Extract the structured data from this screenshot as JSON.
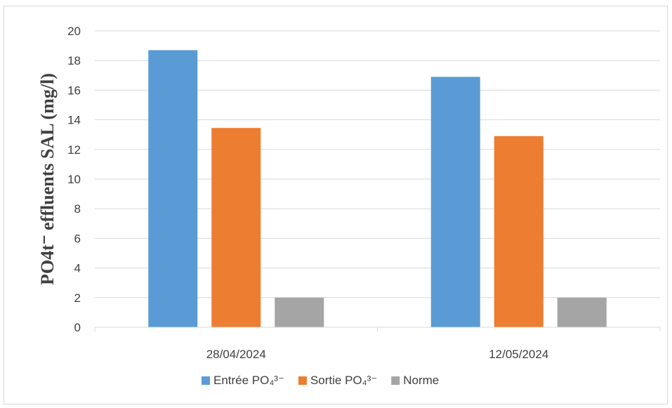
{
  "chart_data": {
    "type": "bar",
    "categories": [
      "28/04/2024",
      "12/05/2024"
    ],
    "series": [
      {
        "name": "Entrée PO₄³⁻",
        "values": [
          18.7,
          16.9
        ],
        "color": "#5b9bd5"
      },
      {
        "name": "Sortie PO₄³⁻",
        "values": [
          13.45,
          12.9
        ],
        "color": "#ed7d31"
      },
      {
        "name": "Norme",
        "values": [
          2,
          2
        ],
        "color": "#a5a5a5"
      }
    ],
    "title": "",
    "xlabel": "",
    "ylabel": "PO4t⁻ effluents SAL (mg/l)",
    "ylim": [
      0,
      20
    ],
    "yticks": [
      0,
      2,
      4,
      6,
      8,
      10,
      12,
      14,
      16,
      18,
      20
    ],
    "grid": true,
    "legend": "bottom",
    "axis_color": "#d9d9d9",
    "text_color": "#404040"
  }
}
